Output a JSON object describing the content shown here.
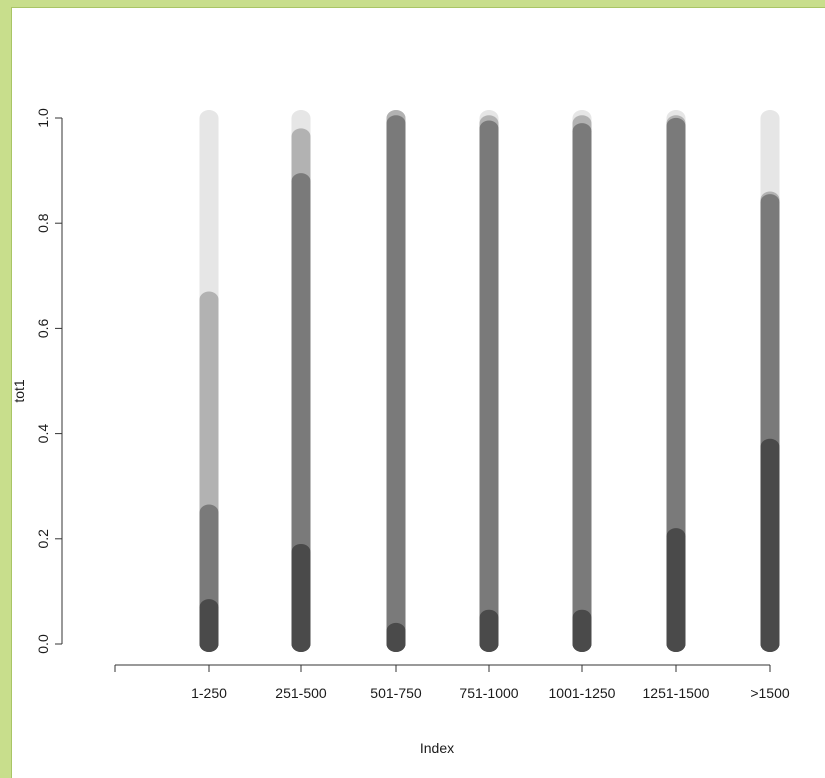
{
  "chart_data": {
    "type": "bar",
    "ylabel": "tot1",
    "xlabel": "Index",
    "ylim": [
      0,
      1
    ],
    "yticks": [
      "0.0",
      "0.2",
      "0.4",
      "0.6",
      "0.8",
      "1.0"
    ],
    "categories": [
      "1-250",
      "251-500",
      "501-750",
      "751-1000",
      "1001-1250",
      "1251-1500",
      ">1500"
    ],
    "colors": [
      "#4a4a4a",
      "#7a7a7a",
      "#b2b2b2",
      "#e6e6e6"
    ],
    "series": [
      {
        "values": [
          0.07,
          0.175,
          0.025,
          0.05,
          0.05,
          0.205,
          0.375
        ]
      },
      {
        "values": [
          0.25,
          0.88,
          0.99,
          0.98,
          0.975,
          0.985,
          0.84
        ]
      },
      {
        "values": [
          0.655,
          0.965,
          1.0,
          0.99,
          0.99,
          0.99,
          0.845
        ]
      },
      {
        "values": [
          1.0,
          1.0,
          1.0,
          1.0,
          1.0,
          1.0,
          1.0
        ]
      }
    ]
  }
}
